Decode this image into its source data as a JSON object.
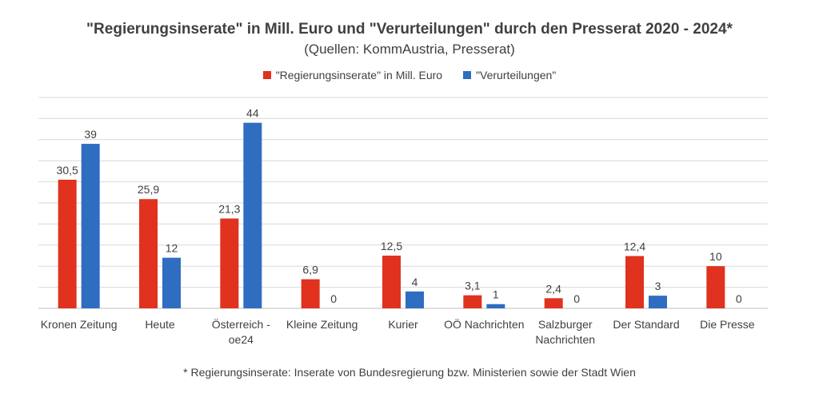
{
  "chart_data": {
    "type": "bar",
    "title": "\"Regierungsinserate\" in Mill. Euro und \"Verurteilungen\" durch den Presserat 2020 - 2024*",
    "subtitle": "(Quellen: KommAustria, Presserat)",
    "footnote": "* Regierungsinserate: Inserate von Bundesregierung bzw. Ministerien sowie der Stadt Wien",
    "categories": [
      [
        "Kronen Zeitung"
      ],
      [
        "Heute"
      ],
      [
        "Österreich -",
        "oe24"
      ],
      [
        "Kleine Zeitung"
      ],
      [
        "Kurier"
      ],
      [
        "OÖ Nachrichten"
      ],
      [
        "Salzburger",
        "Nachrichten"
      ],
      [
        "Der Standard"
      ],
      [
        "Die Presse"
      ]
    ],
    "series": [
      {
        "name": "\"Regierungsinserate\" in Mill. Euro",
        "color": "#E0321E",
        "values": [
          30.5,
          25.9,
          21.3,
          6.9,
          12.5,
          3.1,
          2.4,
          12.4,
          10
        ],
        "labels": [
          "30,5",
          "25,9",
          "21,3",
          "6,9",
          "12,5",
          "3,1",
          "2,4",
          "12,4",
          "10"
        ]
      },
      {
        "name": "\"Verurteilungen\"",
        "color": "#2F6DC0",
        "values": [
          39,
          12,
          44,
          0,
          4,
          1,
          0,
          3,
          0
        ],
        "labels": [
          "39",
          "12",
          "44",
          "0",
          "4",
          "1",
          "0",
          "3",
          "0"
        ]
      }
    ],
    "ylim": [
      0,
      50
    ],
    "grid": true,
    "legend": "top-center"
  }
}
